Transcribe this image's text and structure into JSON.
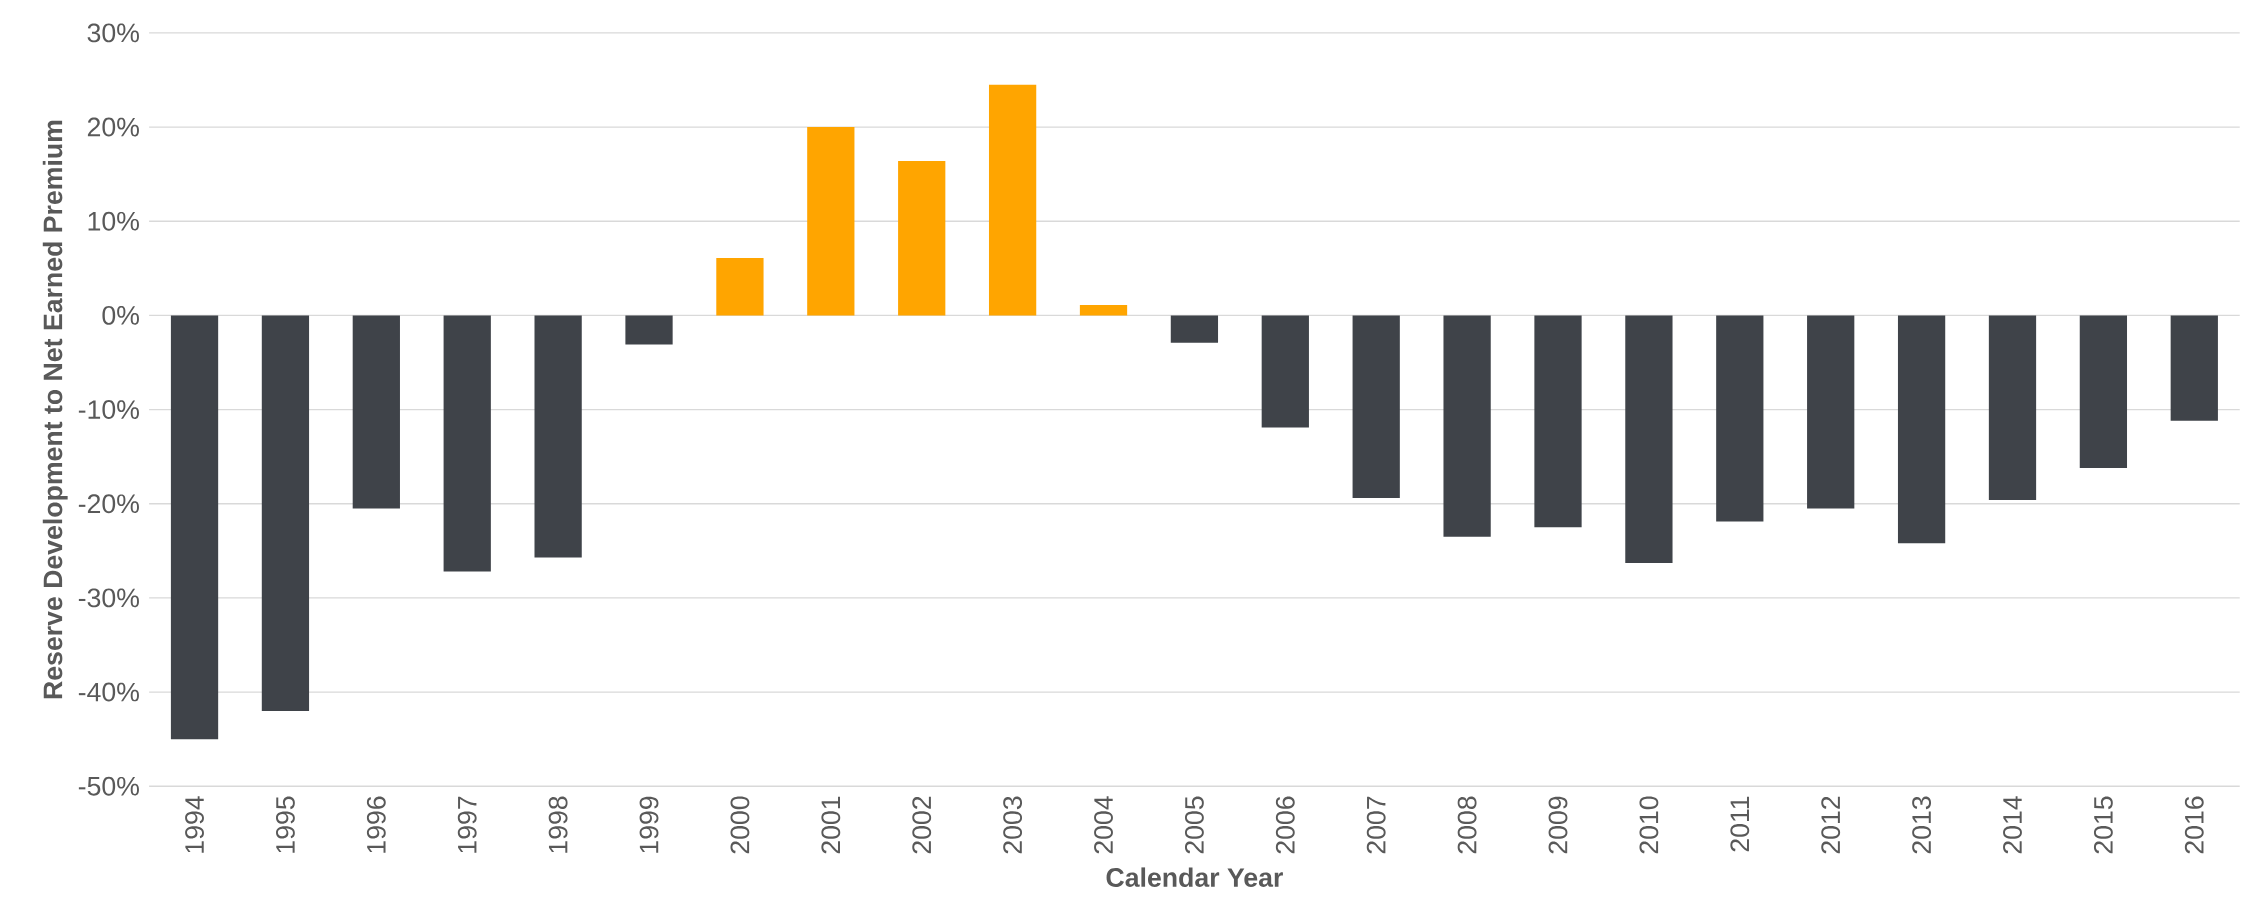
{
  "chart_data": {
    "type": "bar",
    "xlabel": "Calendar Year",
    "ylabel": "Reserve Development to Net Earned Premium",
    "categories": [
      "1994",
      "1995",
      "1996",
      "1997",
      "1998",
      "1999",
      "2000",
      "2001",
      "2002",
      "2003",
      "2004",
      "2005",
      "2006",
      "2007",
      "2008",
      "2009",
      "2010",
      "2011",
      "2012",
      "2013",
      "2014",
      "2015",
      "2016"
    ],
    "values": [
      -45,
      -42,
      -20.5,
      -27.2,
      -25.7,
      -3.1,
      6.1,
      20,
      16.4,
      24.5,
      1.1,
      -2.9,
      -11.9,
      -19.4,
      -23.5,
      -22.5,
      -26.3,
      -21.9,
      -20.5,
      -24.2,
      -19.6,
      -16.2,
      -11.2
    ],
    "colors": [
      "#3f4349",
      "#3f4349",
      "#3f4349",
      "#3f4349",
      "#3f4349",
      "#3f4349",
      "#ffa500",
      "#ffa500",
      "#ffa500",
      "#ffa500",
      "#ffa500",
      "#3f4349",
      "#3f4349",
      "#3f4349",
      "#3f4349",
      "#3f4349",
      "#3f4349",
      "#3f4349",
      "#3f4349",
      "#3f4349",
      "#3f4349",
      "#3f4349",
      "#3f4349"
    ],
    "ylim": [
      -50,
      30
    ],
    "yticks": [
      {
        "value": -50,
        "label": "-50%"
      },
      {
        "value": -40,
        "label": "-40%"
      },
      {
        "value": -30,
        "label": "-30%"
      },
      {
        "value": -20,
        "label": "-20%"
      },
      {
        "value": -10,
        "label": "-10%"
      },
      {
        "value": 0,
        "label": "0%"
      },
      {
        "value": 10,
        "label": "10%"
      },
      {
        "value": 20,
        "label": "20%"
      },
      {
        "value": 30,
        "label": "30%"
      }
    ],
    "grid": "y"
  }
}
